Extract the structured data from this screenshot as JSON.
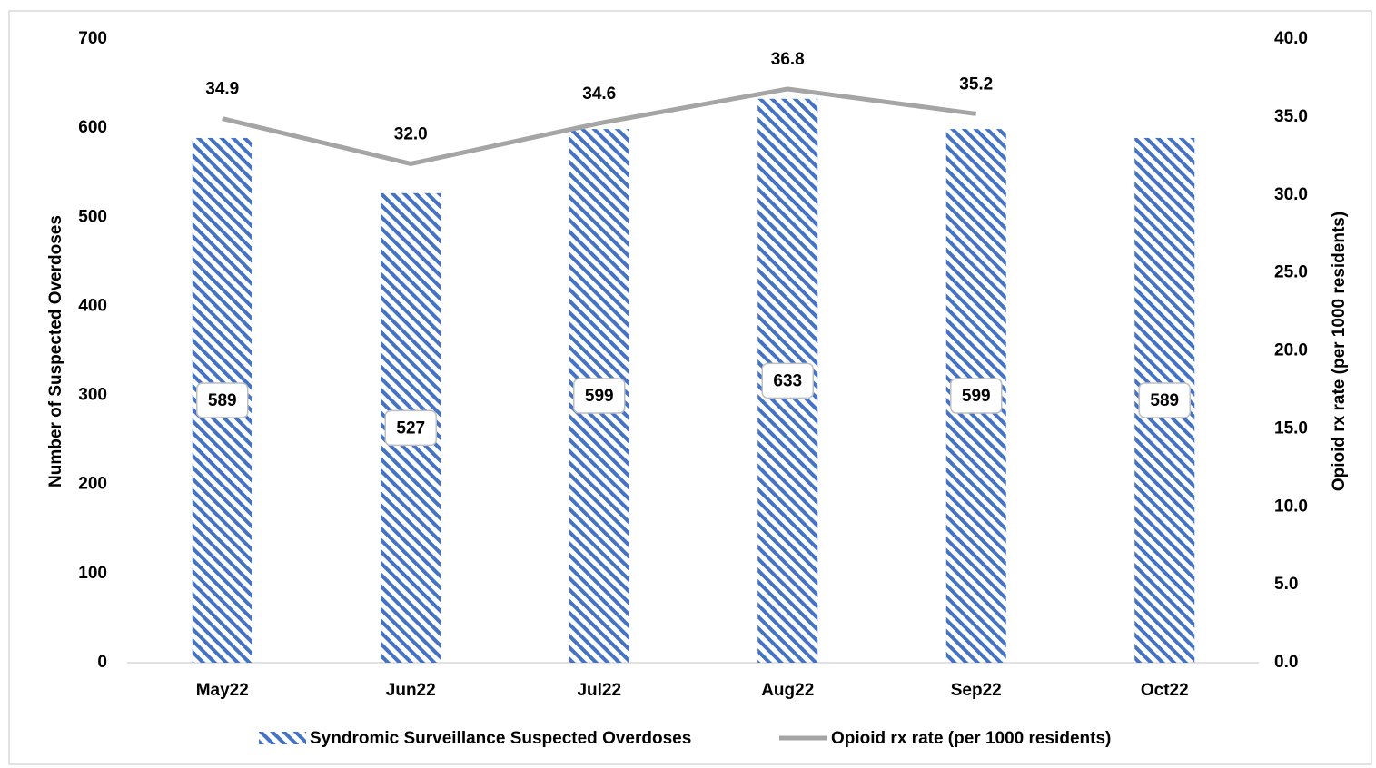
{
  "chart_data": {
    "type": "bar-line",
    "categories": [
      "May22",
      "Jun22",
      "Jul22",
      "Aug22",
      "Sep22",
      "Oct22"
    ],
    "series": [
      {
        "name": "Syndromic Surveillance Suspected Overdoses",
        "type": "bar",
        "color": "#4472c4",
        "pattern": "diagonal-stripes",
        "values": [
          589,
          527,
          599,
          633,
          599,
          589
        ]
      },
      {
        "name": "Opioid rx rate (per 1000 residents)",
        "type": "line",
        "axis": "y2",
        "color": "#a5a5a5",
        "values": [
          34.9,
          32.0,
          34.6,
          36.8,
          35.2,
          null
        ],
        "value_labels": [
          "34.9",
          "32.0",
          "34.6",
          "36.8",
          "35.2",
          null
        ]
      }
    ],
    "y_label": "Number of Suspected Overdoses",
    "y2_label": "Opioid rx rate (per 1000 residents)",
    "ylim": [
      0,
      700
    ],
    "yticks": [
      0,
      100,
      200,
      300,
      400,
      500,
      600,
      700
    ],
    "y2lim": [
      0,
      40
    ],
    "y2ticks": [
      {
        "value": 0,
        "label": "0.0"
      },
      {
        "value": 5,
        "label": "5.0"
      },
      {
        "value": 10,
        "label": "10.0"
      },
      {
        "value": 15,
        "label": "15.0"
      },
      {
        "value": 20,
        "label": "20.0"
      },
      {
        "value": 25,
        "label": "25.0"
      },
      {
        "value": 30,
        "label": "30.0"
      },
      {
        "value": 35,
        "label": "35.0"
      },
      {
        "value": 40,
        "label": "40.0"
      }
    ],
    "grid": false,
    "legend": "bottom"
  }
}
